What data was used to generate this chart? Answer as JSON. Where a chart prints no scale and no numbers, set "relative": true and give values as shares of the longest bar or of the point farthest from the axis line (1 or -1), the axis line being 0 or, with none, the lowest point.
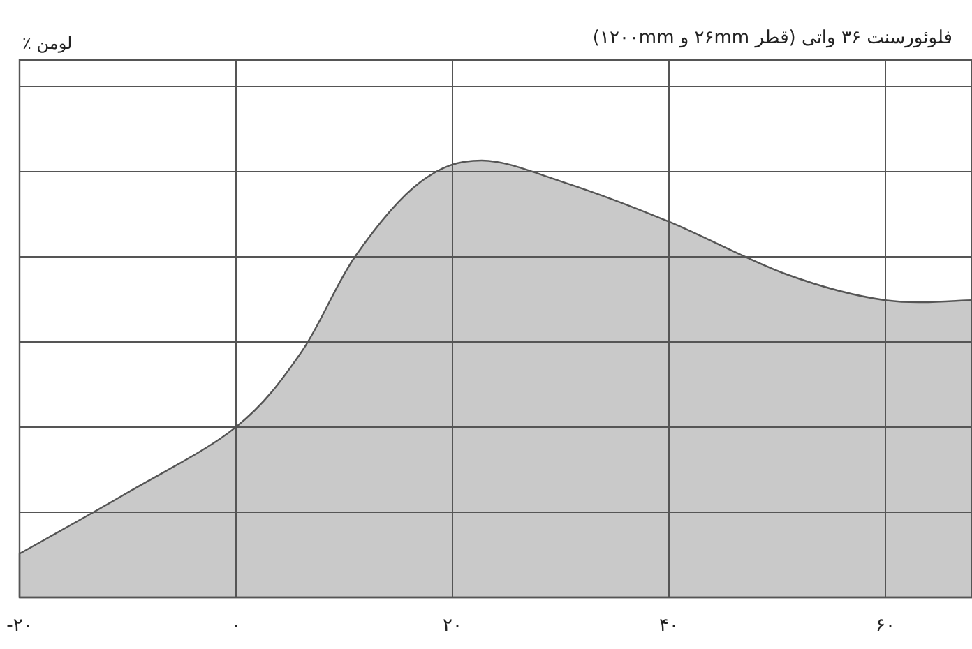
{
  "chart_data": {
    "type": "area",
    "title": "فلوئورسنت ۳۶ واتی (قطر ۲۶mm و ۱۲۰۰mm)",
    "annotations": [
      "لومن ٪"
    ],
    "relative": true,
    "color": "#c9c9c9",
    "x": [
      -20,
      -10,
      0,
      6,
      11,
      17,
      22.7,
      30.3,
      40,
      50.8,
      60,
      68
    ],
    "values": [
      0.1,
      0.24,
      0.39,
      0.56,
      0.78,
      0.95,
      1.0,
      0.95,
      0.86,
      0.74,
      0.68,
      0.68
    ],
    "xlim": [
      -20,
      68
    ],
    "xticks": [
      {
        "value": -20,
        "label": "-۲۰"
      },
      {
        "value": 0,
        "label": "۰"
      },
      {
        "value": 20,
        "label": "۲۰"
      },
      {
        "value": 40,
        "label": "۴۰"
      },
      {
        "value": 60,
        "label": "۶۰"
      }
    ],
    "grid": true
  }
}
